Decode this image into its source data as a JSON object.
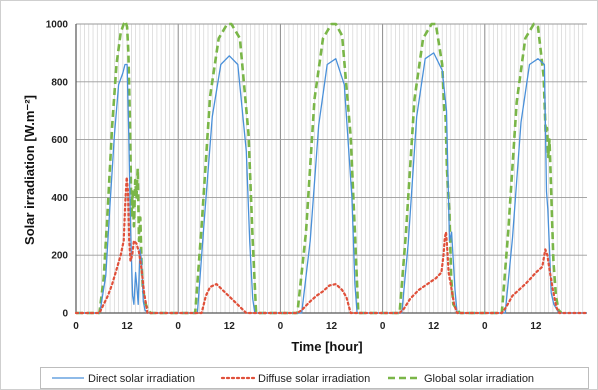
{
  "chart_data": {
    "type": "line",
    "xlabel": "Time [hour]",
    "ylabel": "Solar irradiation [W.m⁻²]",
    "ylim": [
      0,
      1000
    ],
    "yticks": [
      0,
      200,
      400,
      600,
      800,
      1000
    ],
    "xlim": [
      0,
      120
    ],
    "xticks": [
      0,
      12,
      24,
      36,
      48,
      60,
      72,
      84,
      96,
      108
    ],
    "xtick_labels": [
      "0",
      "12",
      "0",
      "12",
      "0",
      "12",
      "0",
      "12",
      "0",
      "12"
    ],
    "grid": true,
    "legend_position": "bottom",
    "series": [
      {
        "name": "Direct solar irradiation",
        "color": "#4a90d9",
        "style": "solid",
        "x": [
          0,
          5.6,
          7,
          8,
          9,
          10,
          11,
          11.5,
          12,
          12.4,
          12.8,
          13.1,
          13.3,
          13.6,
          14,
          14.3,
          14.6,
          15,
          15.4,
          15.8,
          16.2,
          16.8,
          17.5,
          28.5,
          30,
          32,
          34,
          36,
          38,
          40,
          40.8,
          41.5,
          42,
          53,
          55,
          57,
          59,
          61,
          63,
          64.8,
          65.5,
          66,
          76.5,
          78,
          80,
          82,
          84,
          86,
          87,
          87.3,
          87.7,
          88.2,
          89,
          89.5,
          100.8,
          102.5,
          104.5,
          106.5,
          108.5,
          110,
          110.5,
          110.8,
          111.2,
          111.6,
          112.2,
          113,
          113.5,
          120
        ],
        "y": [
          0,
          0,
          130,
          380,
          610,
          790,
          830,
          860,
          860,
          610,
          300,
          150,
          60,
          30,
          140,
          90,
          30,
          220,
          180,
          40,
          10,
          0,
          0,
          0,
          300,
          680,
          860,
          890,
          860,
          560,
          250,
          50,
          0,
          0,
          250,
          650,
          860,
          880,
          790,
          400,
          100,
          0,
          0,
          240,
          680,
          880,
          900,
          840,
          700,
          500,
          250,
          280,
          80,
          0,
          0,
          260,
          660,
          860,
          880,
          860,
          420,
          360,
          220,
          70,
          30,
          10,
          0,
          0
        ]
      },
      {
        "name": "Diffuse solar irradiation",
        "color": "#e0503a",
        "style": "dotted",
        "x": [
          0,
          5.5,
          6.5,
          7.5,
          8.5,
          9.5,
          10.5,
          11.2,
          11.6,
          11.9,
          12.2,
          12.5,
          12.8,
          13.2,
          13.6,
          14.2,
          14.8,
          15.4,
          16,
          16.8,
          29.5,
          30.5,
          31.5,
          33,
          40,
          52,
          53,
          55,
          56.5,
          58,
          59.5,
          61,
          62.5,
          63.5,
          64.5,
          76,
          77,
          78.5,
          80.5,
          82.5,
          84.5,
          85.8,
          86.3,
          86.6,
          86.9,
          87.2,
          87.5,
          88,
          88.8,
          89.5,
          100,
          101,
          102.5,
          104,
          105.5,
          106.8,
          108,
          109.5,
          110.2,
          110.7,
          111.2,
          112,
          112.8,
          113.5,
          120
        ],
        "y": [
          0,
          0,
          30,
          60,
          100,
          150,
          200,
          250,
          390,
          470,
          420,
          250,
          180,
          200,
          250,
          240,
          210,
          150,
          70,
          0,
          0,
          60,
          90,
          100,
          0,
          0,
          10,
          40,
          60,
          75,
          95,
          100,
          80,
          55,
          0,
          0,
          15,
          50,
          80,
          100,
          120,
          140,
          200,
          260,
          280,
          220,
          140,
          100,
          30,
          0,
          0,
          20,
          60,
          80,
          100,
          120,
          140,
          160,
          220,
          200,
          150,
          80,
          20,
          0,
          0
        ]
      },
      {
        "name": "Global solar irradiation",
        "color": "#7ab648",
        "style": "dashed",
        "x": [
          0,
          5.5,
          6.5,
          7.5,
          8.5,
          9.5,
          10.5,
          11.2,
          11.6,
          12,
          12.3,
          12.7,
          13,
          13.3,
          13.6,
          13.9,
          14.2,
          14.5,
          14.8,
          15.1,
          15.4,
          15.7,
          16,
          16.4,
          16.9,
          17.5,
          28,
          29.5,
          31.5,
          33.5,
          35.5,
          36.5,
          38.5,
          40.5,
          41.5,
          42.3,
          52,
          54,
          56,
          58,
          60,
          61,
          62.5,
          64.5,
          65.5,
          66.3,
          76,
          77.5,
          79.5,
          81.5,
          83.5,
          84.5,
          86,
          86.5,
          86.8,
          87.1,
          87.4,
          87.7,
          88.1,
          88.6,
          89.5,
          90.2,
          100,
          101.5,
          103.5,
          105.5,
          107.5,
          108.5,
          109.8,
          110.3,
          110.6,
          110.9,
          111.2,
          111.6,
          112.1,
          112.7,
          113.3,
          114
        ],
        "y": [
          0,
          0,
          120,
          370,
          650,
          860,
          970,
          1000,
          1010,
          990,
          900,
          640,
          330,
          420,
          300,
          460,
          400,
          500,
          250,
          330,
          170,
          80,
          60,
          30,
          10,
          0,
          0,
          300,
          750,
          950,
          1000,
          1000,
          950,
          620,
          250,
          0,
          0,
          280,
          740,
          950,
          1000,
          1000,
          960,
          610,
          280,
          0,
          0,
          280,
          740,
          950,
          1000,
          1000,
          860,
          700,
          680,
          500,
          420,
          340,
          120,
          30,
          10,
          0,
          0,
          280,
          730,
          950,
          1000,
          990,
          820,
          620,
          640,
          540,
          600,
          420,
          180,
          60,
          10,
          0
        ]
      }
    ]
  }
}
